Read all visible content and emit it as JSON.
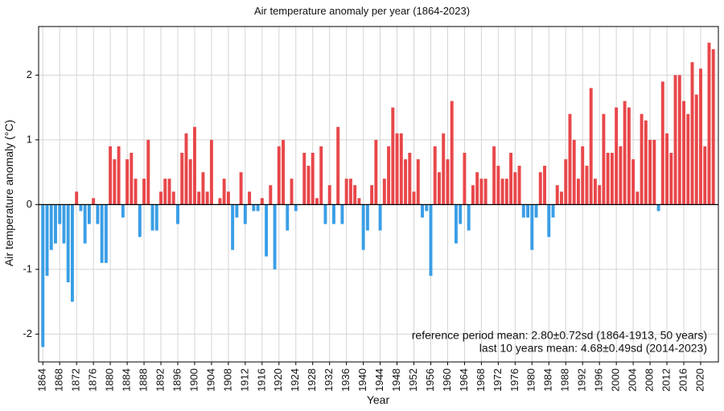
{
  "chart_data": {
    "type": "bar",
    "title": "Air temperature anomaly per year (1864-2023)",
    "x_label": "Year",
    "y_label": "Air temperature anomaly  (°C)",
    "annotations": [
      "reference period mean: 2.80±0.72sd (1864-1913, 50 years)",
      "last 10 years mean: 4.68±0.49sd (2014-2023)"
    ],
    "x": [
      1864,
      1865,
      1866,
      1867,
      1868,
      1869,
      1870,
      1871,
      1872,
      1873,
      1874,
      1875,
      1876,
      1877,
      1878,
      1879,
      1880,
      1881,
      1882,
      1883,
      1884,
      1885,
      1886,
      1887,
      1888,
      1889,
      1890,
      1891,
      1892,
      1893,
      1894,
      1895,
      1896,
      1897,
      1898,
      1899,
      1900,
      1901,
      1902,
      1903,
      1904,
      1905,
      1906,
      1907,
      1908,
      1909,
      1910,
      1911,
      1912,
      1913,
      1914,
      1915,
      1916,
      1917,
      1918,
      1919,
      1920,
      1921,
      1922,
      1923,
      1924,
      1925,
      1926,
      1927,
      1928,
      1929,
      1930,
      1931,
      1932,
      1933,
      1934,
      1935,
      1936,
      1937,
      1938,
      1939,
      1940,
      1941,
      1942,
      1943,
      1944,
      1945,
      1946,
      1947,
      1948,
      1949,
      1950,
      1951,
      1952,
      1953,
      1954,
      1955,
      1956,
      1957,
      1958,
      1959,
      1960,
      1961,
      1962,
      1963,
      1964,
      1965,
      1966,
      1967,
      1968,
      1969,
      1970,
      1971,
      1972,
      1973,
      1974,
      1975,
      1976,
      1977,
      1978,
      1979,
      1980,
      1981,
      1982,
      1983,
      1984,
      1985,
      1986,
      1987,
      1988,
      1989,
      1990,
      1991,
      1992,
      1993,
      1994,
      1995,
      1996,
      1997,
      1998,
      1999,
      2000,
      2001,
      2002,
      2003,
      2004,
      2005,
      2006,
      2007,
      2008,
      2009,
      2010,
      2011,
      2012,
      2013,
      2014,
      2015,
      2016,
      2017,
      2018,
      2019,
      2020,
      2021,
      2022,
      2023
    ],
    "values": [
      -2.2,
      -1.1,
      -0.7,
      -0.6,
      -0.3,
      -0.6,
      -1.2,
      -1.5,
      0.2,
      -0.1,
      -0.6,
      -0.3,
      0.1,
      -0.3,
      -0.9,
      -0.9,
      0.9,
      0.7,
      0.9,
      -0.2,
      0.7,
      0.8,
      0.4,
      -0.5,
      0.4,
      1.0,
      -0.4,
      -0.4,
      0.2,
      0.4,
      0.4,
      0.2,
      -0.3,
      0.8,
      1.1,
      0.7,
      1.2,
      0.2,
      0.5,
      0.2,
      1.0,
      0,
      0.1,
      0.4,
      0.2,
      -0.7,
      -0.2,
      0.5,
      -0.3,
      0.2,
      -0.1,
      -0.1,
      0.1,
      -0.8,
      0.3,
      -1.0,
      0.9,
      1.0,
      -0.4,
      0.4,
      -0.1,
      0,
      0.8,
      0.6,
      0.8,
      0.1,
      0.9,
      -0.3,
      0.3,
      -0.3,
      1.2,
      -0.3,
      0.4,
      0.4,
      0.3,
      0.1,
      -0.7,
      -0.4,
      0.3,
      1.0,
      -0.4,
      0.4,
      0.9,
      1.5,
      1.1,
      1.1,
      0.7,
      0.8,
      0.2,
      0.7,
      -0.2,
      -0.1,
      -1.1,
      0.9,
      0.5,
      1.1,
      0.7,
      1.6,
      -0.6,
      -0.3,
      0.8,
      -0.4,
      0.3,
      0.5,
      0.4,
      0.4,
      0,
      0.9,
      0.6,
      0.4,
      0.4,
      0.8,
      0.5,
      0.6,
      -0.2,
      -0.2,
      -0.7,
      -0.2,
      0.5,
      0.6,
      -0.5,
      -0.2,
      0.3,
      0.2,
      0.7,
      1.4,
      1.0,
      0.4,
      0.9,
      0.6,
      1.8,
      0.4,
      0.3,
      1.4,
      0.8,
      0.8,
      1.5,
      0.9,
      1.6,
      1.5,
      0.7,
      0.2,
      1.4,
      1.3,
      1.0,
      1.0,
      -0.1,
      1.9,
      1.1,
      0.8,
      2.0,
      2.0,
      1.6,
      1.4,
      2.2,
      1.7,
      2.1,
      0.9,
      2.5,
      2.4
    ],
    "positive_color": "#e8474a",
    "negative_color": "#3a9ee6",
    "xlim": [
      1863,
      2024.2
    ],
    "xticks": [
      1864,
      1868,
      1872,
      1876,
      1880,
      1884,
      1888,
      1892,
      1896,
      1900,
      1904,
      1908,
      1912,
      1916,
      1920,
      1924,
      1928,
      1932,
      1936,
      1940,
      1944,
      1948,
      1952,
      1956,
      1960,
      1964,
      1968,
      1972,
      1976,
      1980,
      1984,
      1988,
      1992,
      1996,
      2000,
      2004,
      2008,
      2012,
      2016,
      2020
    ],
    "ylim": [
      -2.43,
      2.75
    ],
    "yticks": [
      -2,
      -1,
      0,
      1,
      2
    ],
    "grid": true
  }
}
